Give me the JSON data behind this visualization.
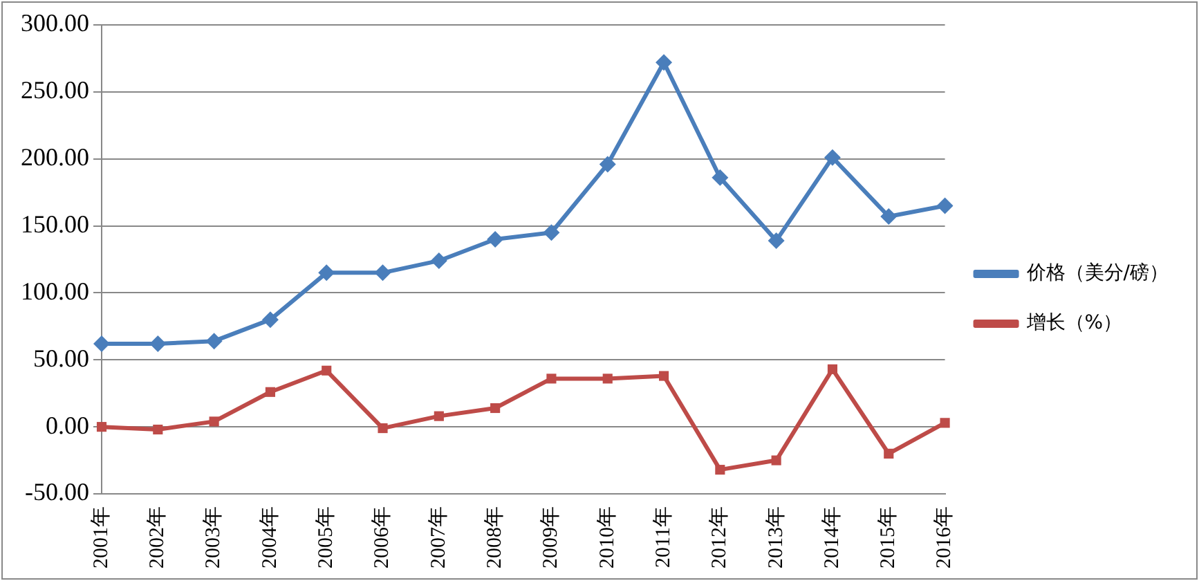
{
  "chart_data": {
    "type": "line",
    "categories": [
      "2001年",
      "2002年",
      "2003年",
      "2004年",
      "2005年",
      "2006年",
      "2007年",
      "2008年",
      "2009年",
      "2010年",
      "2011年",
      "2012年",
      "2013年",
      "2014年",
      "2015年",
      "2016年"
    ],
    "series": [
      {
        "name": "价格（美分/磅）",
        "color": "#4a7ebb",
        "marker": "diamond",
        "values": [
          62,
          62,
          64,
          80,
          115,
          115,
          124,
          140,
          145,
          196,
          272,
          186,
          139,
          201,
          157,
          165
        ]
      },
      {
        "name": "增长（%）",
        "color": "#be4b48",
        "marker": "square",
        "values": [
          0,
          -2,
          4,
          26,
          42,
          -1,
          8,
          14,
          36,
          36,
          38,
          -32,
          -25,
          43,
          -20,
          3
        ]
      }
    ],
    "ylim": [
      -50,
      300
    ],
    "yticks": [
      {
        "value": -50,
        "label": "-50.00"
      },
      {
        "value": 0,
        "label": "0.00"
      },
      {
        "value": 50,
        "label": "50.00"
      },
      {
        "value": 100,
        "label": "100.00"
      },
      {
        "value": 150,
        "label": "150.00"
      },
      {
        "value": 200,
        "label": "200.00"
      },
      {
        "value": 250,
        "label": "250.00"
      },
      {
        "value": 300,
        "label": "300.00"
      }
    ],
    "grid": "y",
    "legend": "right",
    "line_style": "solid"
  }
}
